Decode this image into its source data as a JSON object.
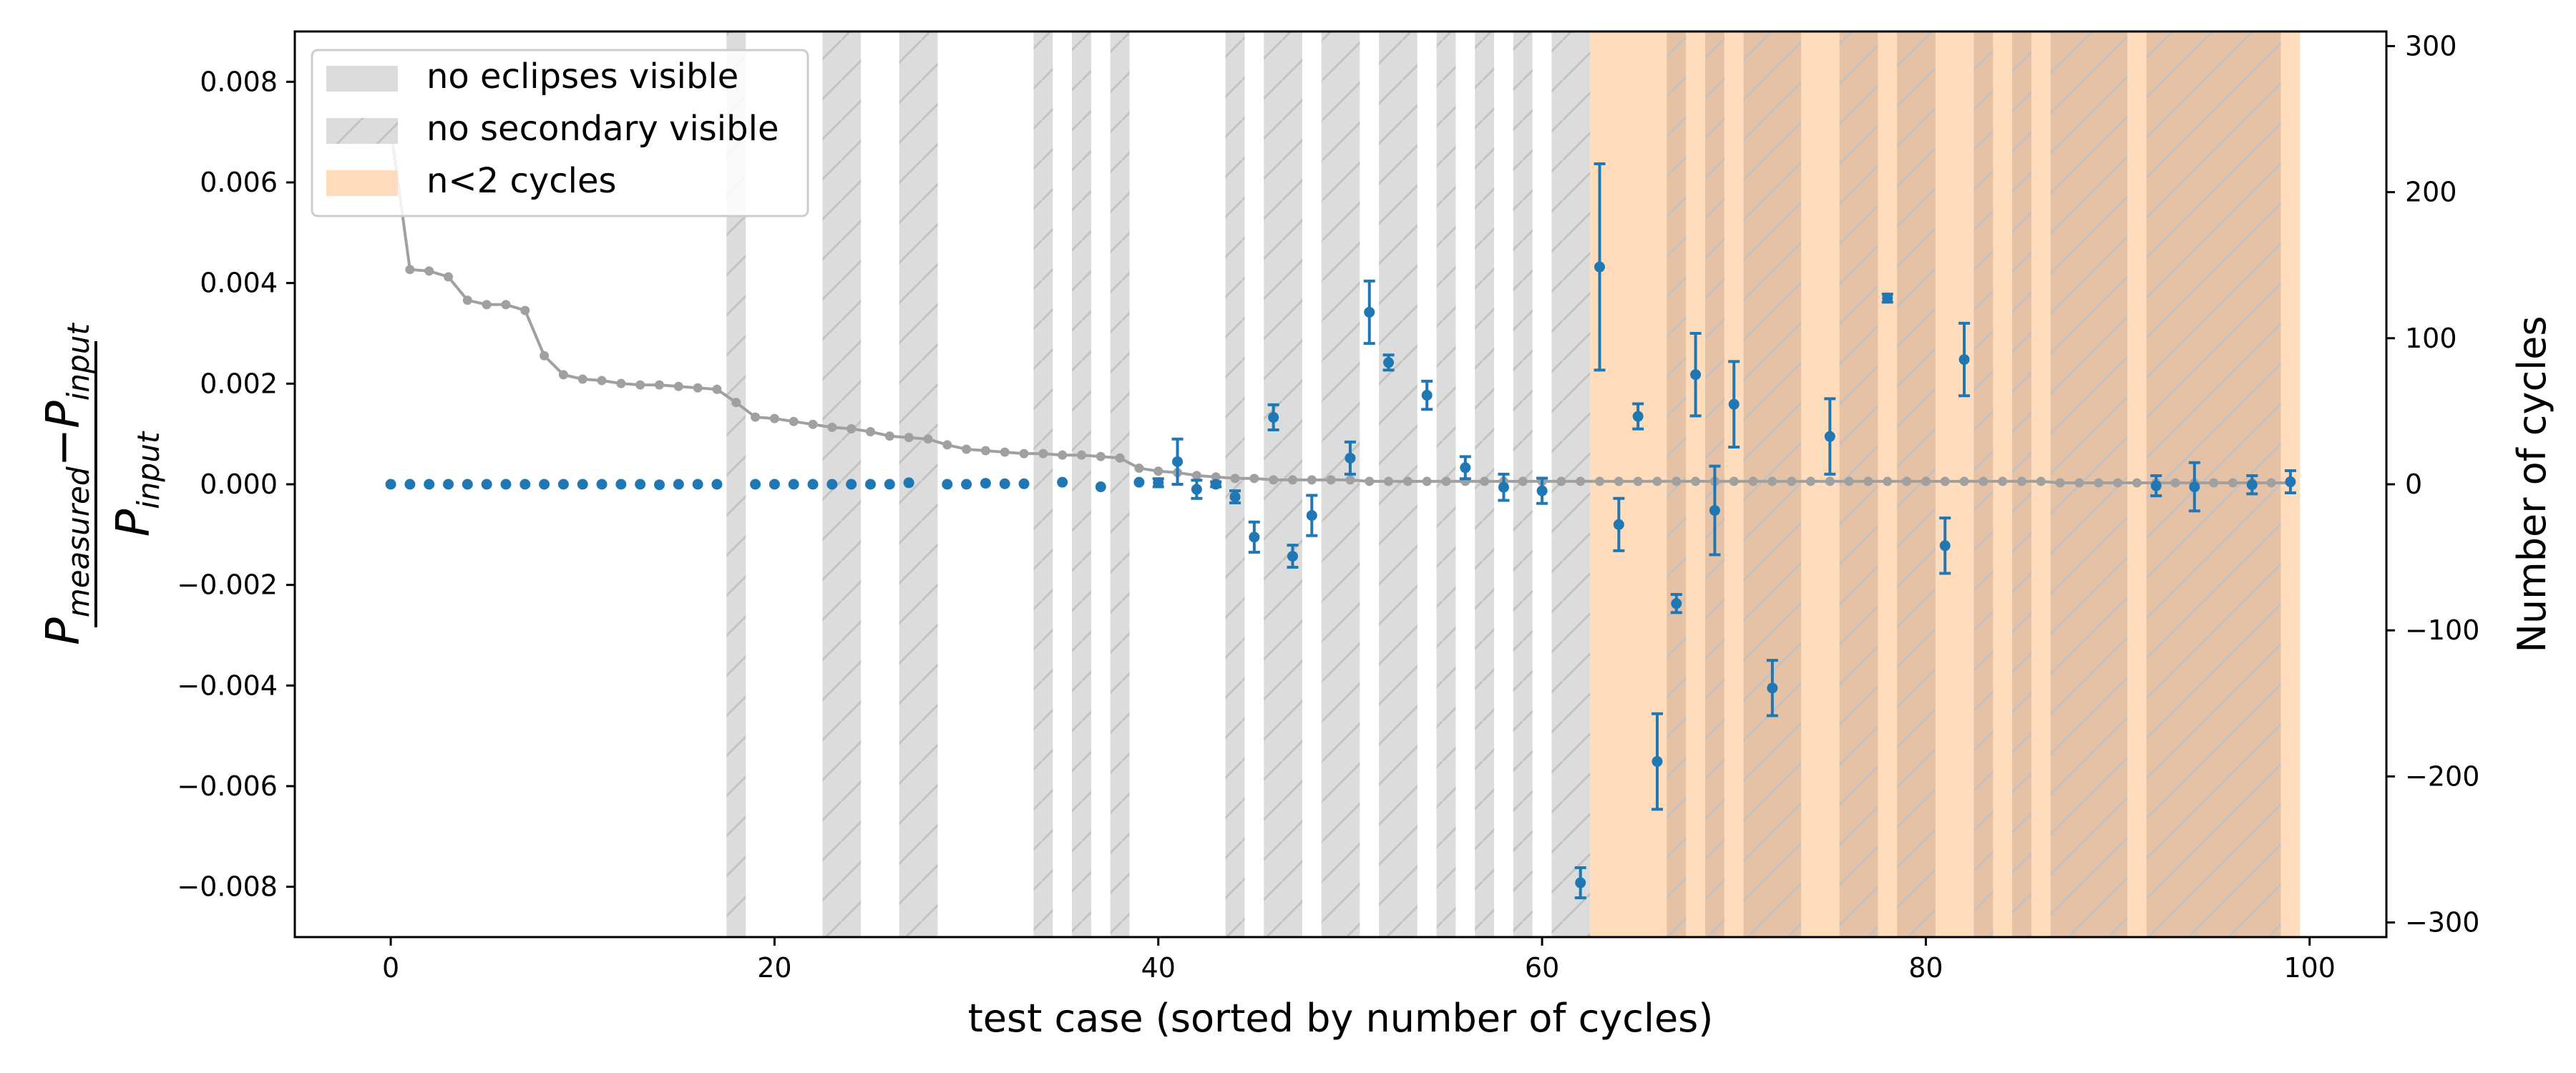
{
  "chart_data": {
    "type": "scatter",
    "xlabel": "test case (sorted by number of cycles)",
    "ylabel": {
      "numerator_base": "P",
      "numerator_sub": "measured",
      "minus": "−",
      "numerator_base2": "P",
      "numerator_sub2": "input",
      "denominator_base": "P",
      "denominator_sub": "input"
    },
    "y2label": "Number of cycles",
    "xlim": [
      -5,
      104
    ],
    "ylim": [
      -0.009,
      0.009
    ],
    "y2lim": [
      -310,
      310
    ],
    "xticks": [
      0,
      20,
      40,
      60,
      80,
      100
    ],
    "yticks": [
      -0.008,
      -0.006,
      -0.004,
      -0.002,
      0.0,
      0.002,
      0.004,
      0.006,
      0.008
    ],
    "ytick_labels": [
      "−0.008",
      "−0.006",
      "−0.004",
      "−0.002",
      "0.000",
      "0.002",
      "0.004",
      "0.006",
      "0.008"
    ],
    "y2ticks": [
      -300,
      -200,
      -100,
      0,
      100,
      200,
      300
    ],
    "y2tick_labels": [
      "−300",
      "−200",
      "−100",
      "0",
      "100",
      "200",
      "300"
    ],
    "legend": {
      "position": "upper-left",
      "entries": [
        {
          "label": "no eclipses visible",
          "kind": "gray"
        },
        {
          "label": "no secondary visible",
          "kind": "gray-hatch"
        },
        {
          "label": "n<2 cycles",
          "kind": "orange"
        }
      ]
    },
    "colors": {
      "gray_band": "#dcdcdc",
      "orange_band": "#ffdcbc",
      "overlap_band": "#e5c2a6",
      "hatch": "#c2c2c2",
      "cycles_line": "#a0a0a0",
      "points": "#1f77b4"
    },
    "gray_bands": [
      [
        17.5,
        18.5
      ],
      [
        22.5,
        24.5
      ],
      [
        26.5,
        28.5
      ],
      [
        33.5,
        34.5
      ],
      [
        35.5,
        36.5
      ],
      [
        37.5,
        38.5
      ],
      [
        43.5,
        44.5
      ],
      [
        45.5,
        47.5
      ],
      [
        48.5,
        50.5
      ],
      [
        51.5,
        53.5
      ],
      [
        54.5,
        55.5
      ],
      [
        56.5,
        57.5
      ],
      [
        58.5,
        59.5
      ],
      [
        60.5,
        62.5
      ],
      [
        66.5,
        67.5
      ],
      [
        68.5,
        69.5
      ],
      [
        70.5,
        73.5
      ],
      [
        75.5,
        77.5
      ],
      [
        78.5,
        80.5
      ],
      [
        82.5,
        83.5
      ],
      [
        84.5,
        85.5
      ],
      [
        86.5,
        90.5
      ],
      [
        91.5,
        98.5
      ]
    ],
    "orange_band": [
      62.5,
      99.5
    ],
    "cycles_series": {
      "name": "Number of cycles",
      "x": [
        0,
        1,
        2,
        3,
        4,
        5,
        6,
        7,
        8,
        9,
        10,
        11,
        12,
        13,
        14,
        15,
        16,
        17,
        18,
        19,
        20,
        21,
        22,
        23,
        24,
        25,
        26,
        27,
        28,
        29,
        30,
        31,
        32,
        33,
        34,
        35,
        36,
        37,
        38,
        39,
        40,
        41,
        42,
        43,
        44,
        45,
        46,
        47,
        48,
        49,
        50,
        51,
        52,
        53,
        54,
        55,
        56,
        57,
        58,
        59,
        60,
        61,
        62,
        63,
        64,
        65,
        66,
        67,
        68,
        69,
        70,
        71,
        72,
        73,
        74,
        75,
        76,
        77,
        78,
        79,
        80,
        81,
        82,
        83,
        84,
        85,
        86,
        87,
        88,
        89,
        90,
        91,
        92,
        93,
        94,
        95,
        96,
        97,
        98,
        99
      ],
      "y": [
        243,
        147,
        146,
        142,
        126,
        123,
        123,
        119,
        88,
        75,
        72,
        71,
        69,
        68,
        68,
        67,
        66,
        65,
        56,
        46,
        45,
        43,
        41,
        39,
        38,
        36,
        33,
        32,
        31,
        27,
        24,
        23,
        22,
        21,
        21,
        20,
        20,
        19,
        18,
        11,
        9,
        8,
        6,
        5,
        4,
        4,
        3,
        3,
        3,
        3,
        3,
        2,
        2,
        2,
        2,
        2,
        2,
        2,
        2,
        2,
        2,
        2,
        2,
        2,
        2,
        2,
        2,
        2,
        2,
        2,
        2,
        2,
        2,
        2,
        2,
        2,
        2,
        2,
        2,
        2,
        2,
        2,
        2,
        2,
        2,
        2,
        2,
        1,
        1,
        1,
        1,
        1,
        1,
        1,
        1,
        1,
        1,
        1,
        1,
        1
      ]
    },
    "measurements": {
      "name": "(P_measured - P_input)/P_input",
      "x": [
        0,
        1,
        2,
        3,
        4,
        5,
        6,
        7,
        8,
        9,
        10,
        11,
        12,
        13,
        14,
        15,
        16,
        17,
        19,
        20,
        21,
        22,
        23,
        24,
        25,
        26,
        27,
        29,
        30,
        31,
        32,
        33,
        35,
        37,
        39,
        40,
        41,
        42,
        43,
        44,
        45,
        46,
        47,
        48,
        50,
        51,
        52,
        54,
        56,
        58,
        60,
        62,
        63,
        64,
        65,
        66,
        67,
        68,
        69,
        70,
        72,
        75,
        78,
        81,
        82,
        92,
        94,
        97,
        99
      ],
      "y": [
        0.0,
        0.0,
        0.0,
        0.0,
        0.0,
        0.0,
        0.0,
        0.0,
        0.0,
        0.0,
        0.0,
        0.0,
        0.0,
        0.0,
        -1e-05,
        0.0,
        0.0,
        0.0,
        0.0,
        0.0,
        0.0,
        0.0,
        0.0,
        0.0,
        0.0,
        0.0,
        3e-05,
        0.0,
        0.0,
        2e-05,
        1e-05,
        1e-05,
        4e-05,
        -5e-05,
        4e-05,
        3e-05,
        0.00045,
        -0.0001,
        0.0,
        -0.00025,
        -0.00105,
        0.00133,
        -0.00143,
        -0.00062,
        0.00052,
        0.00342,
        0.00242,
        0.00177,
        0.00033,
        -6e-05,
        -0.00013,
        -0.00792,
        0.00432,
        -0.0008,
        0.00135,
        -0.00551,
        -0.00237,
        0.00218,
        -0.00052,
        0.00159,
        -0.00405,
        0.00095,
        0.0037,
        -0.00122,
        0.00248,
        -3e-05,
        -5e-05,
        -1e-05,
        5e-05
      ],
      "err": [
        0,
        0,
        0,
        0,
        0,
        0,
        0,
        0,
        0,
        0,
        0,
        0,
        0,
        0,
        0,
        0,
        0,
        0,
        0,
        0,
        0,
        0,
        0,
        0,
        0,
        0,
        0,
        0,
        0,
        0,
        0,
        0,
        0,
        0,
        0,
        8e-05,
        0.00045,
        0.00018,
        5e-05,
        0.00012,
        0.0003,
        0.00025,
        0.00022,
        0.0004,
        0.00032,
        0.00062,
        0.00015,
        0.00028,
        0.00022,
        0.00026,
        0.00025,
        0.0003,
        0.00205,
        0.00052,
        0.00025,
        0.00095,
        0.00018,
        0.00082,
        0.00088,
        0.00085,
        0.00055,
        0.00075,
        8e-05,
        0.00055,
        0.00072,
        0.0002,
        0.00048,
        0.00018,
        0.00022
      ]
    }
  }
}
